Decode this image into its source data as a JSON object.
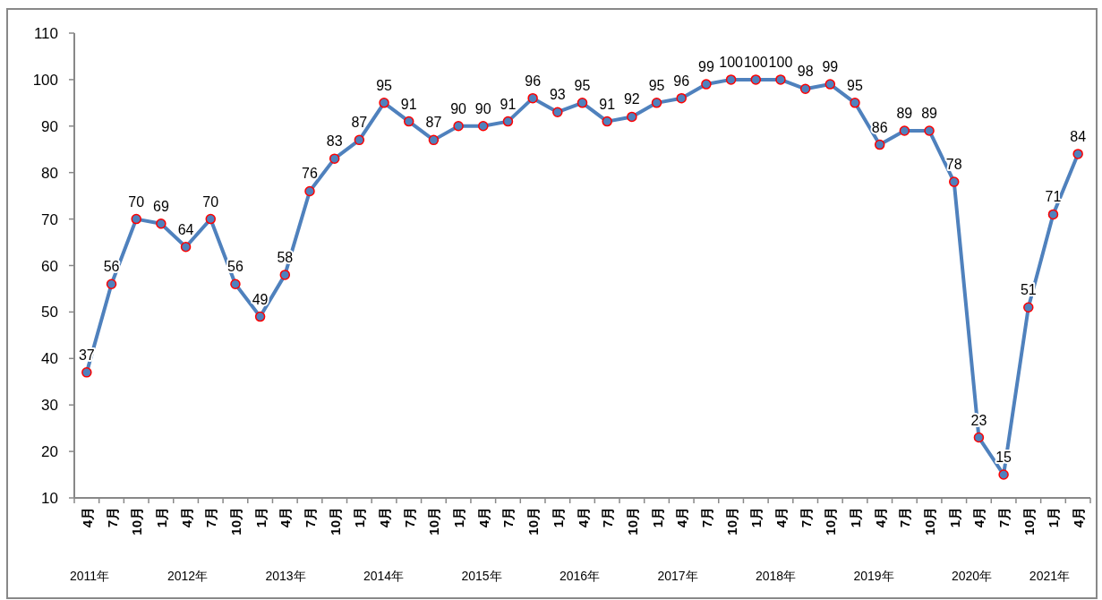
{
  "chart_data": {
    "type": "line",
    "categories": [
      "4月",
      "7月",
      "10月",
      "1月",
      "4月",
      "7月",
      "10月",
      "1月",
      "4月",
      "7月",
      "10月",
      "1月",
      "4月",
      "7月",
      "10月",
      "1月",
      "4月",
      "7月",
      "10月",
      "1月",
      "4月",
      "7月",
      "10月",
      "1月",
      "4月",
      "7月",
      "10月",
      "1月",
      "4月",
      "7月",
      "10月",
      "1月",
      "4月",
      "7月",
      "10月",
      "1月",
      "4月",
      "7月",
      "10月",
      "1月",
      "4月"
    ],
    "series": [
      {
        "color": "#4f81bd",
        "values": [
          37,
          56,
          70,
          69,
          64,
          70,
          56,
          49,
          58,
          76,
          83,
          87,
          95,
          91,
          87,
          90,
          90,
          91,
          96,
          93,
          95,
          91,
          92,
          95,
          96,
          99,
          100,
          100,
          100,
          98,
          99,
          95,
          86,
          89,
          89,
          78,
          23,
          15,
          51,
          71,
          84
        ]
      }
    ],
    "ylim": [
      10,
      110
    ],
    "yticks": [
      10,
      20,
      30,
      40,
      50,
      60,
      70,
      80,
      90,
      100,
      110
    ],
    "marker": "circle",
    "data_labels": true,
    "grid": false,
    "annotations": [
      "2011年",
      "2012年",
      "2013年",
      "2014年",
      "2015年",
      "2016年",
      "2017年",
      "2018年",
      "2019年",
      "2020年",
      "2021年"
    ]
  }
}
